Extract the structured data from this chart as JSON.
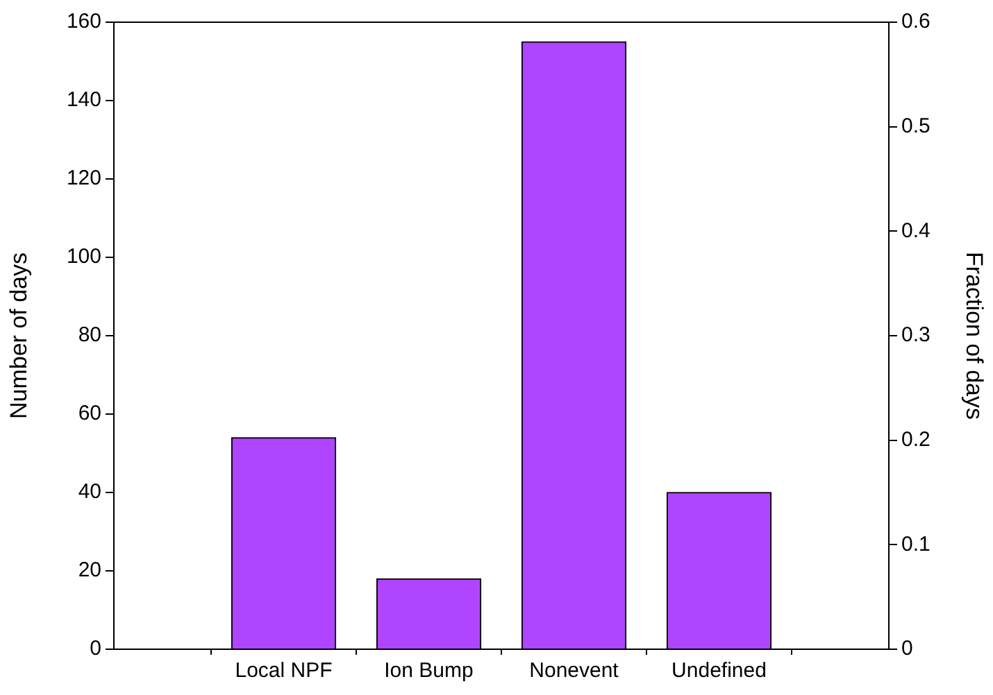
{
  "chart_data": {
    "type": "bar",
    "categories": [
      "Local NPF",
      "Ion Bump",
      "Nonevent",
      "Undefined"
    ],
    "values": [
      54,
      18,
      155,
      40
    ],
    "color": "#b045ff",
    "ylabel": "Number of days",
    "y2label": "Fraction of days",
    "ylim": [
      0,
      160
    ],
    "yticks": [
      0,
      20,
      40,
      60,
      80,
      100,
      120,
      140,
      160
    ],
    "y2lim": [
      0,
      0.6
    ],
    "y2ticks": [
      0,
      0.1,
      0.2,
      0.3,
      0.4,
      0.5,
      0.6
    ],
    "grid": false,
    "legend": false
  }
}
